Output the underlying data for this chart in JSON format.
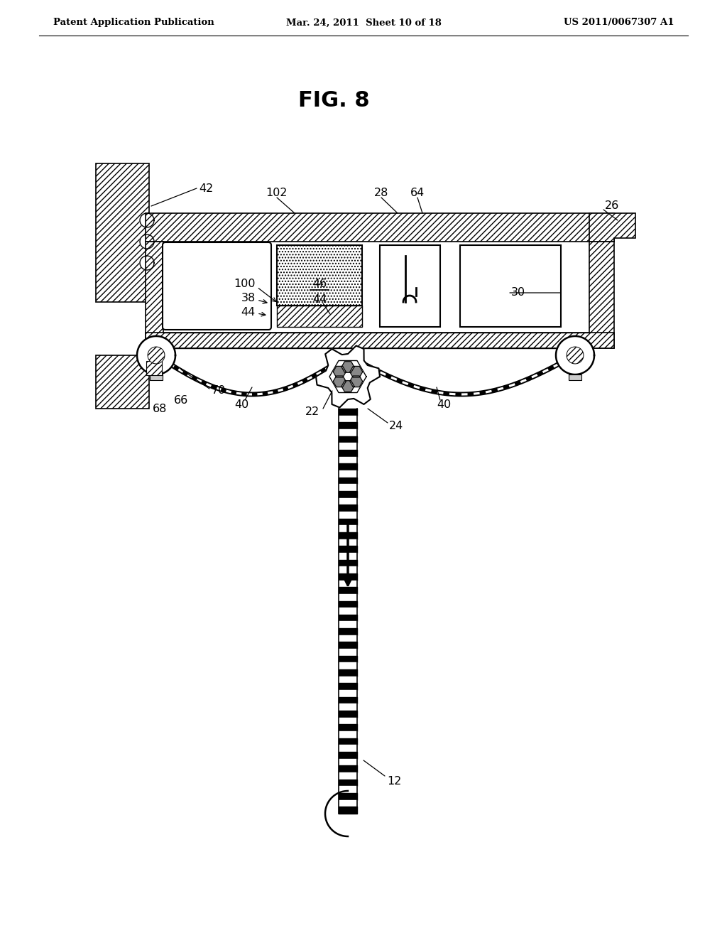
{
  "header_left": "Patent Application Publication",
  "header_center": "Mar. 24, 2011  Sheet 10 of 18",
  "header_right": "US 2011/0067307 A1",
  "fig_title": "FIG. 8",
  "bg_color": "#ffffff"
}
